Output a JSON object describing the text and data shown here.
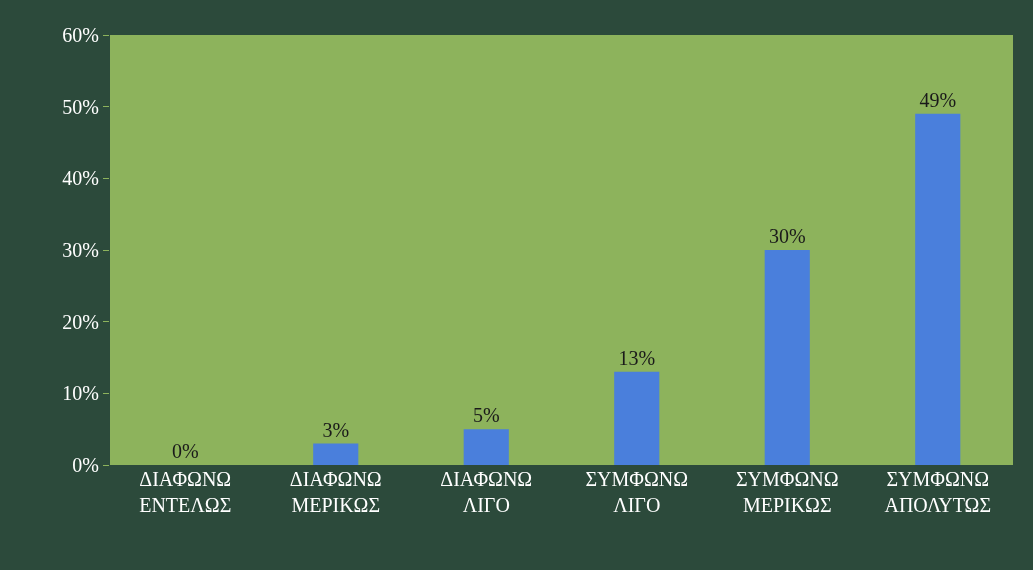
{
  "chart_data": {
    "type": "bar",
    "categories": [
      "ΔΙΑΦΩΝΩ\nΕΝΤΕΛΩΣ",
      "ΔΙΑΦΩΝΩ\nΜΕΡΙΚΩΣ",
      "ΔΙΑΦΩΝΩ\nΛΙΓΟ",
      "ΣΥΜΦΩΝΩ\nΛΙΓΟ",
      "ΣΥΜΦΩΝΩ\nΜΕΡΙΚΩΣ",
      "ΣΥΜΦΩΝΩ\nΑΠΟΛΥΤΩΣ"
    ],
    "values": [
      0,
      3,
      5,
      13,
      30,
      49
    ],
    "value_labels": [
      "0%",
      "3%",
      "5%",
      "13%",
      "30%",
      "49%"
    ],
    "color": "#4a7fdc",
    "ylim": [
      0,
      60
    ],
    "yticks": [
      {
        "value": 0,
        "label": "0%"
      },
      {
        "value": 10,
        "label": "10%"
      },
      {
        "value": 20,
        "label": "20%"
      },
      {
        "value": 30,
        "label": "30%"
      },
      {
        "value": 40,
        "label": "40%"
      },
      {
        "value": 50,
        "label": "50%"
      },
      {
        "value": 60,
        "label": "60%"
      }
    ],
    "grid": false,
    "legend": false
  }
}
